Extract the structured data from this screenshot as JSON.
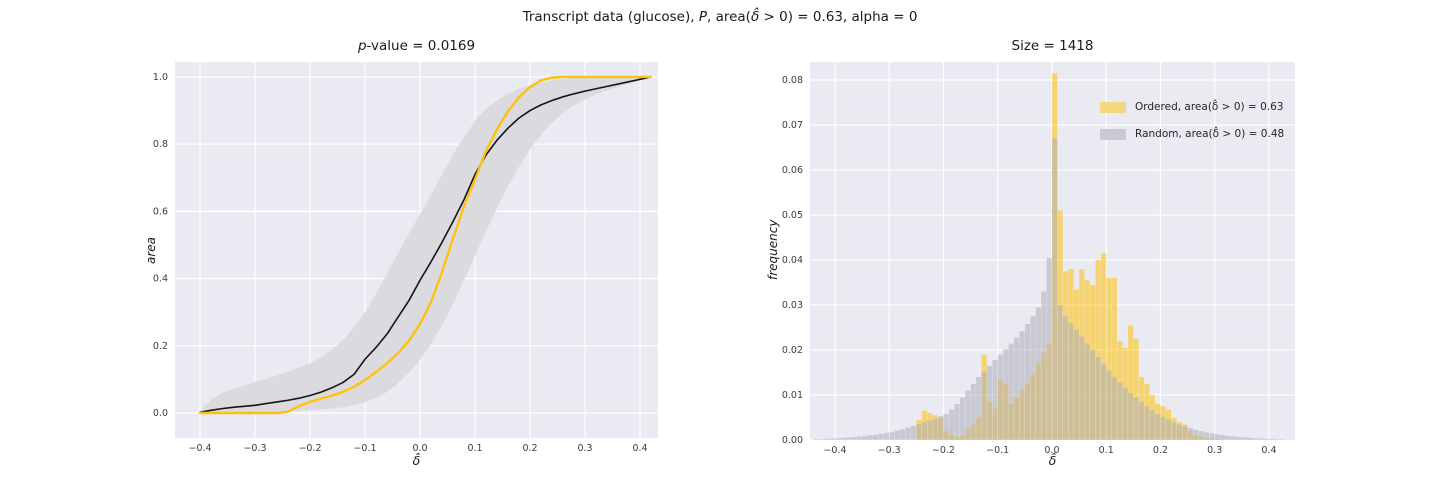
{
  "suptitle_parts": [
    {
      "text": "Transcript data (glucose), "
    },
    {
      "text": "P",
      "italic": true
    },
    {
      "text": ", area("
    },
    {
      "text": "δ̂",
      "italic": true
    },
    {
      "text": " > 0) = 0.63, alpha = 0"
    }
  ],
  "colors": {
    "axes_bg": "#EAEAF2",
    "grid": "#FFFFFF",
    "ordered_line": "#FFC10D",
    "random_mean_line": "#151515",
    "band_fill": "#DBDBDF",
    "hist_ordered_fill": "#FFC107",
    "hist_random_fill": "#AFAFB9",
    "tick_text": "#3c3c3c",
    "title_text": "#1a1a1a"
  },
  "chart_data": [
    {
      "type": "line",
      "title_parts": [
        {
          "text": "p",
          "italic": true
        },
        {
          "text": "-value = 0.0169"
        }
      ],
      "xlabel": "δ̂",
      "ylabel": "area",
      "xlim": [
        -0.4455,
        0.4327
      ],
      "ylim": [
        -0.0744,
        1.0446
      ],
      "grid": true,
      "xtick_vals": [
        -0.4,
        -0.3,
        -0.2,
        -0.1,
        0.0,
        0.1,
        0.2,
        0.3,
        0.4
      ],
      "xtick_labels": [
        "−0.4",
        "−0.3",
        "−0.2",
        "−0.1",
        "0.0",
        "0.1",
        "0.2",
        "0.3",
        "0.4"
      ],
      "ytick_vals": [
        0.0,
        0.2,
        0.4,
        0.6,
        0.8,
        1.0
      ],
      "ytick_labels": [
        "0.0",
        "0.2",
        "0.4",
        "0.6",
        "0.8",
        "1.0"
      ],
      "x": [
        -0.4,
        -0.38,
        -0.36,
        -0.34,
        -0.32,
        -0.3,
        -0.28,
        -0.26,
        -0.24,
        -0.22,
        -0.2,
        -0.18,
        -0.16,
        -0.14,
        -0.12,
        -0.1,
        -0.08,
        -0.06,
        -0.04,
        -0.02,
        0.0,
        0.02,
        0.04,
        0.06,
        0.08,
        0.1,
        0.12,
        0.14,
        0.16,
        0.18,
        0.2,
        0.22,
        0.24,
        0.26,
        0.28,
        0.3,
        0.32,
        0.34,
        0.36,
        0.38,
        0.4,
        0.42
      ],
      "series": [
        {
          "name": "ordered-curve",
          "values": [
            0,
            0,
            0,
            0,
            0,
            0,
            0,
            0,
            0.004,
            0.02,
            0.033,
            0.043,
            0.052,
            0.063,
            0.078,
            0.098,
            0.122,
            0.148,
            0.178,
            0.215,
            0.265,
            0.33,
            0.42,
            0.52,
            0.615,
            0.695,
            0.78,
            0.845,
            0.898,
            0.94,
            0.97,
            0.99,
            0.998,
            1,
            1,
            1,
            1,
            1,
            1,
            1,
            1,
            1
          ]
        },
        {
          "name": "random-mean-curve",
          "values": [
            0.002,
            0.008,
            0.013,
            0.017,
            0.02,
            0.023,
            0.028,
            0.033,
            0.038,
            0.044,
            0.052,
            0.062,
            0.075,
            0.091,
            0.115,
            0.16,
            0.195,
            0.235,
            0.285,
            0.335,
            0.395,
            0.45,
            0.508,
            0.57,
            0.635,
            0.71,
            0.768,
            0.812,
            0.848,
            0.878,
            0.9,
            0.917,
            0.93,
            0.941,
            0.95,
            0.958,
            0.965,
            0.972,
            0.979,
            0.986,
            0.993,
            1.0
          ]
        },
        {
          "name": "random-band-lower",
          "values": [
            0.0,
            0.001,
            0.002,
            0.002,
            0.003,
            0.003,
            0.004,
            0.004,
            0.005,
            0.006,
            0.008,
            0.01,
            0.013,
            0.017,
            0.023,
            0.032,
            0.045,
            0.063,
            0.088,
            0.12,
            0.158,
            0.205,
            0.26,
            0.325,
            0.395,
            0.468,
            0.54,
            0.61,
            0.675,
            0.733,
            0.785,
            0.828,
            0.863,
            0.892,
            0.915,
            0.933,
            0.948,
            0.96,
            0.97,
            0.98,
            0.99,
            1.0
          ]
        },
        {
          "name": "random-band-upper",
          "values": [
            0.005,
            0.04,
            0.06,
            0.072,
            0.082,
            0.092,
            0.102,
            0.112,
            0.123,
            0.135,
            0.148,
            0.165,
            0.188,
            0.218,
            0.255,
            0.3,
            0.355,
            0.415,
            0.475,
            0.535,
            0.592,
            0.65,
            0.71,
            0.77,
            0.82,
            0.87,
            0.905,
            0.93,
            0.95,
            0.965,
            0.975,
            0.983,
            0.99,
            0.994,
            0.997,
            0.999,
            1.0,
            1.0,
            1.0,
            1.0,
            1.0,
            1.0
          ]
        }
      ]
    },
    {
      "type": "bar",
      "title": "Size = 1418",
      "xlabel": "δ̂",
      "ylabel": "frequency",
      "xlim": [
        -0.446,
        0.448
      ],
      "ylim": [
        0,
        0.084
      ],
      "grid": true,
      "xtick_vals": [
        -0.4,
        -0.3,
        -0.2,
        -0.1,
        0.0,
        0.1,
        0.2,
        0.3,
        0.4
      ],
      "xtick_labels": [
        "−0.4",
        "−0.3",
        "−0.2",
        "−0.1",
        "0.0",
        "0.1",
        "0.2",
        "0.3",
        "0.4"
      ],
      "ytick_vals": [
        0.0,
        0.01,
        0.02,
        0.03,
        0.04,
        0.05,
        0.06,
        0.07,
        0.08
      ],
      "ytick_labels": [
        "0.00",
        "0.01",
        "0.02",
        "0.03",
        "0.04",
        "0.05",
        "0.06",
        "0.07",
        "0.08"
      ],
      "bin_start": -0.44,
      "bin_width": 0.01,
      "legend": [
        {
          "label": "Ordered, area(δ̂ > 0) = 0.63",
          "swatch": "#F5D77E"
        },
        {
          "label": "Random, area(δ̂ > 0) = 0.48",
          "swatch": "#CACAD3"
        }
      ],
      "series": [
        {
          "name": "ordered-hist",
          "values": [
            0,
            0,
            0,
            0,
            0,
            0,
            0,
            0,
            0,
            0,
            0,
            0,
            0,
            0,
            0,
            0,
            0,
            0,
            0,
            0.0045,
            0.0065,
            0.006,
            0.0055,
            0.005,
            0.002,
            0.0012,
            0.0008,
            0.001,
            0.0025,
            0.0035,
            0.005,
            0.019,
            0.0085,
            0.007,
            0.0134,
            0.0125,
            0.008,
            0.0095,
            0.011,
            0.0125,
            0.0145,
            0.017,
            0.0195,
            0.0215,
            0.0815,
            0.051,
            0.0375,
            0.038,
            0.0335,
            0.038,
            0.0355,
            0.0345,
            0.04,
            0.0415,
            0.036,
            0.036,
            0.022,
            0.0205,
            0.0255,
            0.0225,
            0.014,
            0.0125,
            0.01,
            0.008,
            0.0075,
            0.0068,
            0.005,
            0.004,
            0.0035,
            0.002,
            0.001,
            0.0008,
            0.0005,
            0.0003,
            0.0002,
            0,
            0,
            0,
            0,
            0,
            0,
            0,
            0,
            0,
            0,
            0,
            0,
            0,
            0
          ]
        },
        {
          "name": "random-hist",
          "values": [
            0.0002,
            0.0002,
            0.0003,
            0.0004,
            0.0004,
            0.0005,
            0.0006,
            0.0007,
            0.0008,
            0.0009,
            0.0011,
            0.0012,
            0.0014,
            0.0016,
            0.0018,
            0.0021,
            0.0024,
            0.0028,
            0.0032,
            0.0036,
            0.004,
            0.0044,
            0.0048,
            0.0053,
            0.0058,
            0.0068,
            0.008,
            0.0095,
            0.011,
            0.0125,
            0.014,
            0.0152,
            0.0165,
            0.0178,
            0.019,
            0.0202,
            0.0214,
            0.0228,
            0.0242,
            0.0258,
            0.0275,
            0.0295,
            0.033,
            0.0405,
            0.067,
            0.03,
            0.0275,
            0.026,
            0.0245,
            0.023,
            0.0215,
            0.02,
            0.0185,
            0.017,
            0.0155,
            0.014,
            0.0128,
            0.0116,
            0.0105,
            0.0095,
            0.0085,
            0.0075,
            0.0066,
            0.0058,
            0.0052,
            0.0046,
            0.004,
            0.0035,
            0.0031,
            0.0027,
            0.0023,
            0.002,
            0.0017,
            0.0015,
            0.0013,
            0.0011,
            0.0009,
            0.0008,
            0.0007,
            0.0006,
            0.0005,
            0.0004,
            0.0004,
            0.0003,
            0.0003,
            0.0002,
            0.0002,
            0.0001,
            0.0001
          ]
        }
      ]
    }
  ]
}
